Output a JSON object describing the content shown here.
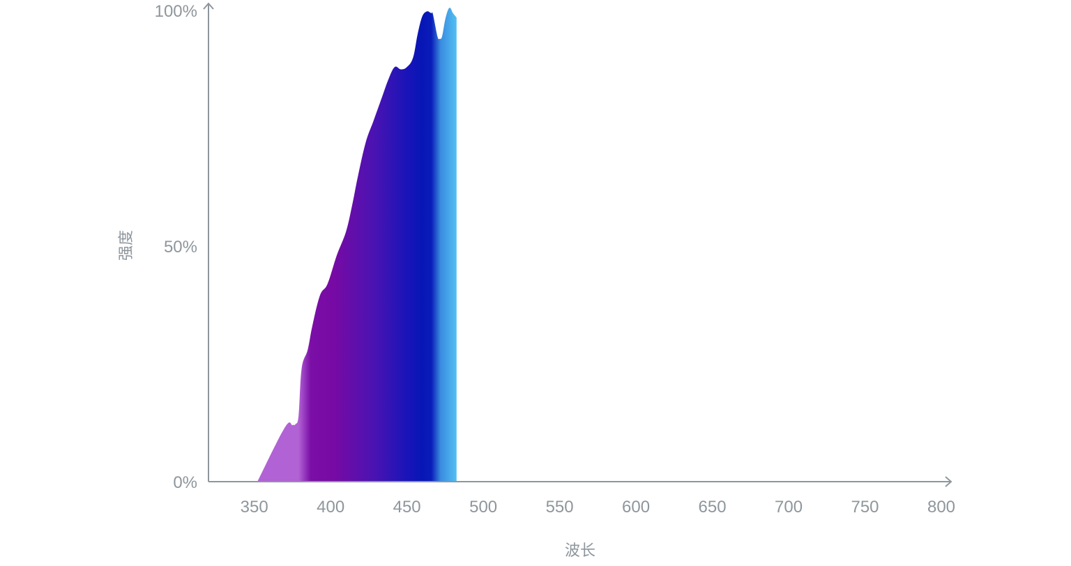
{
  "chart_data": {
    "type": "area",
    "title": "",
    "xlabel": "波长",
    "ylabel": "强度",
    "xlim": [
      320,
      800
    ],
    "ylim": [
      0,
      100
    ],
    "x_ticks": [
      "350",
      "400",
      "450",
      "500",
      "550",
      "600",
      "650",
      "700",
      "750",
      "800"
    ],
    "y_ticks": [
      "0%",
      "50%",
      "100%"
    ],
    "grid": false,
    "legend": "none",
    "series": [
      {
        "x": [
          352,
          370,
          375,
          377,
          379,
          381,
          385,
          388,
          393,
          398,
          404,
          410,
          414,
          418,
          423,
          428,
          433,
          438,
          442,
          446,
          450,
          454,
          457,
          460,
          463,
          465,
          466,
          467,
          470,
          471.5,
          473,
          475,
          477,
          478.5,
          480,
          482.5
        ],
        "y": [
          0,
          11.5,
          12,
          12.2,
          14,
          24,
          28,
          33,
          39.5,
          42,
          48,
          53,
          58.5,
          65,
          72,
          76.5,
          81,
          85.5,
          88,
          87.5,
          88,
          90,
          95,
          98.7,
          99.8,
          99.6,
          99.4,
          99.2,
          94.5,
          94,
          94.5,
          98,
          100.2,
          100.5,
          99.5,
          98.5
        ],
        "color_stops": [
          {
            "wavelength": 352,
            "color": "#b162d4"
          },
          {
            "wavelength": 379,
            "color": "#b162d4"
          },
          {
            "wavelength": 387,
            "color": "#7a0ea6"
          },
          {
            "wavelength": 402,
            "color": "#770aa4"
          },
          {
            "wavelength": 428,
            "color": "#4b13b2"
          },
          {
            "wavelength": 450,
            "color": "#1a14b8"
          },
          {
            "wavelength": 460,
            "color": "#0716b6"
          },
          {
            "wavelength": 466,
            "color": "#0a1db8"
          },
          {
            "wavelength": 472,
            "color": "#3a8be0"
          },
          {
            "wavelength": 482.5,
            "color": "#52c0f2"
          }
        ]
      }
    ]
  },
  "colors": {
    "axis": "#8e969c",
    "background": "#ffffff"
  }
}
